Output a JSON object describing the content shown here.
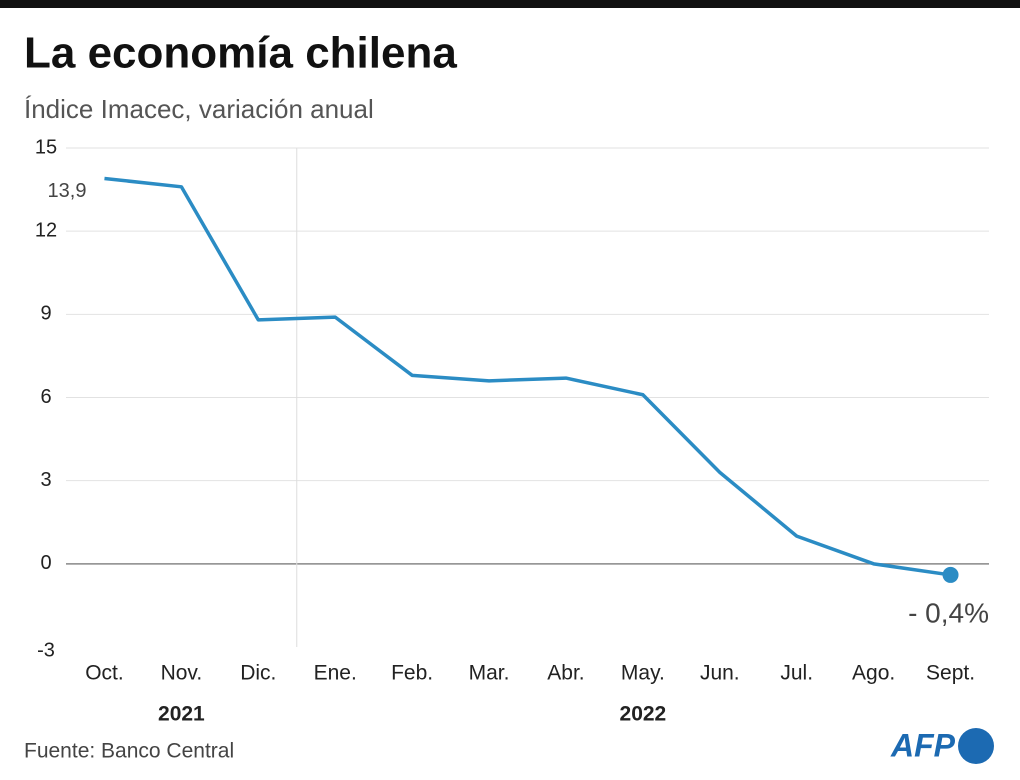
{
  "chart_data": {
    "type": "line",
    "title": "La economía chilena",
    "subtitle": "Índice Imacec, variación anual",
    "categories": [
      "Oct.",
      "Nov.",
      "Dic.",
      "Ene.",
      "Feb.",
      "Mar.",
      "Abr.",
      "May.",
      "Jun.",
      "Jul.",
      "Ago.",
      "Sept."
    ],
    "x_groups": [
      {
        "label": "2021",
        "count": 3
      },
      {
        "label": "2022",
        "count": 9
      }
    ],
    "series": [
      {
        "name": "Imacec",
        "color": "#2b8cc4",
        "values": [
          13.9,
          13.6,
          8.8,
          8.9,
          6.8,
          6.6,
          6.7,
          6.1,
          3.3,
          1.0,
          0.0,
          -0.4
        ],
        "value_labels": [
          "13,9",
          null,
          null,
          null,
          null,
          null,
          null,
          null,
          null,
          null,
          null,
          "- 0,4%"
        ]
      }
    ],
    "ylim": [
      -3,
      15
    ],
    "yticks": [
      -3,
      0,
      3,
      6,
      9,
      12,
      15
    ],
    "grid": true,
    "source": "Fuente: Banco Central",
    "logo": "AFP"
  }
}
